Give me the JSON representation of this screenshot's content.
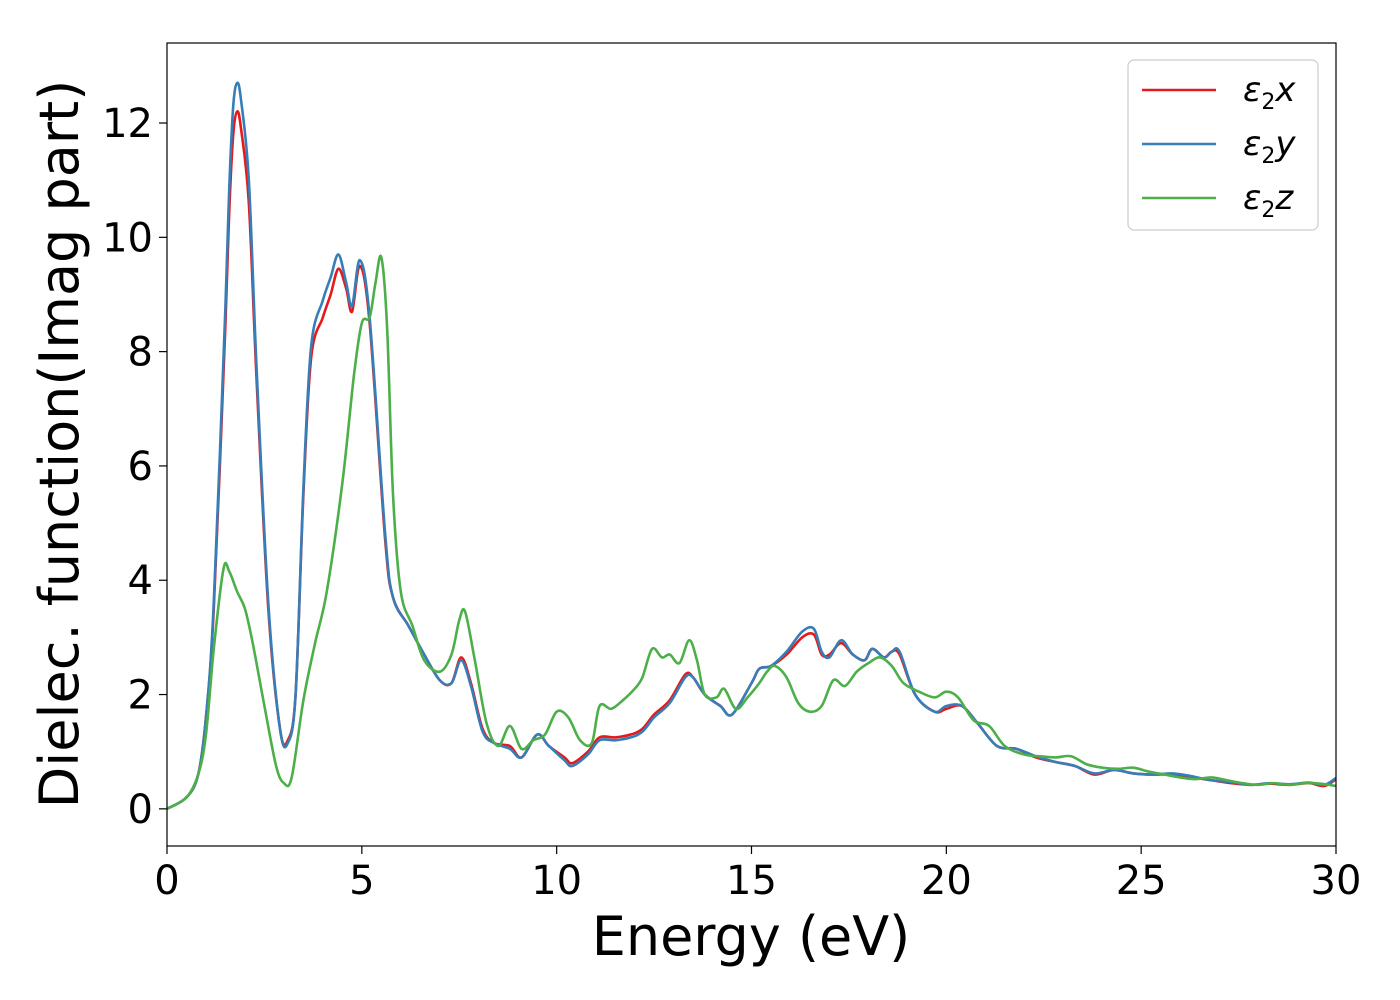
{
  "chart_data": {
    "type": "line",
    "xlabel": "Energy (eV)",
    "ylabel": "Dielec. function(Imag part)",
    "xlim": [
      0,
      30
    ],
    "ylim": [
      -0.65,
      13.4
    ],
    "xticks": [
      0,
      5,
      10,
      15,
      20,
      25,
      30
    ],
    "yticks": [
      0,
      2,
      4,
      6,
      8,
      10,
      12
    ],
    "grid": false,
    "legend_position": "top-right",
    "series": [
      {
        "name": "ε2x",
        "legend": {
          "base": "ε",
          "sub": "2",
          "tail": "x"
        },
        "color": "#e41a1c",
        "x": [
          0,
          0.5,
          0.8,
          1.0,
          1.2,
          1.5,
          1.6,
          1.7,
          1.8,
          1.9,
          2.1,
          2.3,
          2.6,
          2.9,
          3.1,
          3.3,
          3.5,
          3.7,
          4.0,
          4.2,
          4.4,
          4.6,
          4.75,
          4.95,
          5.2,
          5.6,
          5.8,
          6.2,
          6.6,
          7.0,
          7.3,
          7.55,
          7.8,
          8.1,
          8.4,
          8.8,
          9.1,
          9.5,
          9.8,
          10.2,
          10.4,
          10.8,
          11.1,
          11.5,
          11.9,
          12.2,
          12.5,
          12.9,
          13.3,
          13.5,
          13.8,
          14.2,
          14.5,
          15.0,
          15.2,
          15.5,
          15.9,
          16.3,
          16.6,
          16.8,
          17.0,
          17.3,
          17.6,
          17.9,
          18.1,
          18.4,
          18.6,
          18.8,
          19.2,
          19.7,
          20.0,
          20.4,
          20.8,
          21.3,
          21.8,
          22.3,
          22.8,
          23.3,
          23.8,
          24.3,
          24.8,
          25.3,
          25.8,
          26.3,
          26.8,
          27.3,
          27.8,
          28.3,
          28.8,
          29.3,
          29.7,
          30.0
        ],
        "y": [
          0.0,
          0.2,
          0.6,
          1.6,
          3.5,
          8.5,
          10.5,
          11.8,
          12.2,
          11.9,
          10.6,
          7.5,
          3.5,
          1.4,
          1.2,
          2.0,
          5.5,
          7.9,
          8.6,
          9.0,
          9.45,
          9.1,
          8.7,
          9.5,
          8.5,
          4.7,
          3.7,
          3.2,
          2.7,
          2.25,
          2.2,
          2.65,
          2.2,
          1.4,
          1.15,
          1.1,
          0.9,
          1.3,
          1.1,
          0.9,
          0.8,
          1.0,
          1.25,
          1.25,
          1.3,
          1.4,
          1.65,
          1.9,
          2.35,
          2.3,
          2.0,
          1.8,
          1.65,
          2.2,
          2.45,
          2.5,
          2.7,
          3.0,
          3.05,
          2.7,
          2.7,
          2.9,
          2.7,
          2.6,
          2.8,
          2.65,
          2.75,
          2.7,
          2.0,
          1.7,
          1.75,
          1.8,
          1.5,
          1.1,
          1.05,
          0.9,
          0.82,
          0.75,
          0.6,
          0.68,
          0.62,
          0.6,
          0.6,
          0.55,
          0.5,
          0.45,
          0.42,
          0.44,
          0.42,
          0.45,
          0.4,
          0.52
        ]
      },
      {
        "name": "ε2y",
        "legend": {
          "base": "ε",
          "sub": "2",
          "tail": "y"
        },
        "color": "#377eb8",
        "x": [
          0,
          0.5,
          0.8,
          1.0,
          1.2,
          1.5,
          1.6,
          1.7,
          1.8,
          1.9,
          2.1,
          2.3,
          2.6,
          2.9,
          3.1,
          3.3,
          3.5,
          3.7,
          4.0,
          4.2,
          4.4,
          4.6,
          4.75,
          4.95,
          5.2,
          5.6,
          5.8,
          6.2,
          6.6,
          7.0,
          7.3,
          7.55,
          7.8,
          8.1,
          8.4,
          8.8,
          9.1,
          9.5,
          9.8,
          10.2,
          10.4,
          10.8,
          11.1,
          11.5,
          11.9,
          12.2,
          12.5,
          12.9,
          13.3,
          13.5,
          13.8,
          14.2,
          14.5,
          15.0,
          15.2,
          15.5,
          15.9,
          16.3,
          16.6,
          16.8,
          17.0,
          17.3,
          17.6,
          17.9,
          18.1,
          18.4,
          18.6,
          18.8,
          19.2,
          19.7,
          20.0,
          20.4,
          20.8,
          21.3,
          21.8,
          22.3,
          22.8,
          23.3,
          23.8,
          24.3,
          24.8,
          25.3,
          25.8,
          26.3,
          26.8,
          27.3,
          27.8,
          28.3,
          28.8,
          29.3,
          29.7,
          30.0
        ],
        "y": [
          0.0,
          0.2,
          0.6,
          1.6,
          3.6,
          8.8,
          10.9,
          12.3,
          12.7,
          12.4,
          11.0,
          7.7,
          3.6,
          1.4,
          1.15,
          2.0,
          5.6,
          8.1,
          8.9,
          9.3,
          9.7,
          9.2,
          8.8,
          9.6,
          8.6,
          4.8,
          3.7,
          3.2,
          2.7,
          2.25,
          2.2,
          2.6,
          2.15,
          1.35,
          1.15,
          1.05,
          0.9,
          1.3,
          1.1,
          0.85,
          0.75,
          0.95,
          1.2,
          1.2,
          1.25,
          1.35,
          1.6,
          1.85,
          2.3,
          2.3,
          2.0,
          1.8,
          1.65,
          2.2,
          2.45,
          2.5,
          2.75,
          3.1,
          3.15,
          2.75,
          2.65,
          2.95,
          2.7,
          2.6,
          2.8,
          2.65,
          2.75,
          2.75,
          2.0,
          1.7,
          1.8,
          1.8,
          1.5,
          1.1,
          1.05,
          0.92,
          0.82,
          0.75,
          0.62,
          0.68,
          0.62,
          0.6,
          0.62,
          0.57,
          0.5,
          0.47,
          0.42,
          0.45,
          0.43,
          0.46,
          0.42,
          0.54
        ]
      },
      {
        "name": "ε2z",
        "legend": {
          "base": "ε",
          "sub": "2",
          "tail": "z"
        },
        "color": "#4daf4a",
        "x": [
          0,
          0.5,
          0.8,
          1.0,
          1.2,
          1.45,
          1.6,
          1.8,
          2.0,
          2.2,
          2.5,
          2.8,
          3.0,
          3.2,
          3.5,
          3.8,
          4.1,
          4.5,
          4.8,
          5.0,
          5.2,
          5.35,
          5.5,
          5.65,
          5.8,
          6.0,
          6.3,
          6.6,
          7.0,
          7.3,
          7.5,
          7.65,
          7.9,
          8.2,
          8.5,
          8.8,
          9.1,
          9.4,
          9.7,
          10.0,
          10.3,
          10.6,
          10.9,
          11.1,
          11.4,
          11.7,
          12.0,
          12.2,
          12.45,
          12.7,
          12.9,
          13.15,
          13.4,
          13.6,
          13.8,
          14.1,
          14.3,
          14.6,
          14.9,
          15.2,
          15.4,
          15.6,
          15.9,
          16.2,
          16.5,
          16.8,
          17.1,
          17.4,
          17.7,
          18.0,
          18.3,
          18.6,
          18.9,
          19.3,
          19.7,
          20.0,
          20.3,
          20.7,
          21.1,
          21.5,
          22.0,
          22.4,
          22.8,
          23.2,
          23.6,
          24.0,
          24.4,
          24.8,
          25.2,
          25.6,
          26.0,
          26.4,
          26.8,
          27.2,
          27.6,
          28.0,
          28.4,
          28.8,
          29.2,
          29.6,
          30.0
        ],
        "y": [
          0.0,
          0.2,
          0.6,
          1.3,
          2.8,
          4.2,
          4.15,
          3.8,
          3.5,
          2.9,
          1.8,
          0.75,
          0.45,
          0.55,
          1.9,
          2.9,
          3.8,
          5.7,
          7.6,
          8.5,
          8.6,
          9.2,
          9.65,
          8.4,
          5.5,
          3.8,
          3.2,
          2.6,
          2.4,
          2.7,
          3.3,
          3.45,
          2.6,
          1.5,
          1.1,
          1.45,
          1.05,
          1.2,
          1.3,
          1.7,
          1.6,
          1.2,
          1.15,
          1.8,
          1.75,
          1.9,
          2.1,
          2.3,
          2.8,
          2.65,
          2.7,
          2.55,
          2.95,
          2.6,
          2.0,
          1.95,
          2.1,
          1.75,
          1.95,
          2.2,
          2.4,
          2.5,
          2.3,
          1.85,
          1.7,
          1.8,
          2.25,
          2.15,
          2.4,
          2.55,
          2.65,
          2.5,
          2.2,
          2.05,
          1.95,
          2.05,
          1.95,
          1.55,
          1.45,
          1.1,
          0.95,
          0.92,
          0.9,
          0.92,
          0.78,
          0.72,
          0.7,
          0.72,
          0.65,
          0.6,
          0.55,
          0.52,
          0.55,
          0.5,
          0.45,
          0.42,
          0.45,
          0.42,
          0.45,
          0.44,
          0.4
        ]
      }
    ]
  }
}
